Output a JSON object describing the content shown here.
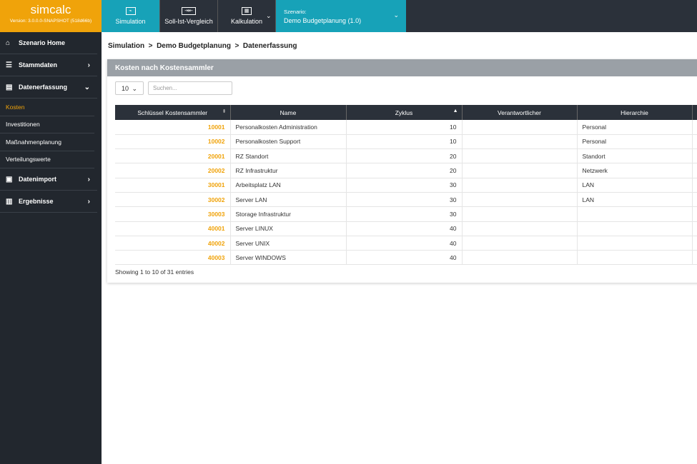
{
  "app": {
    "name": "simcalc",
    "version": "Version: 3.0.0.0-SNAPSHOT (518d66b)",
    "accent": "#f0a30a",
    "teal": "#17a2b8"
  },
  "topnav": {
    "simulation": "Simulation",
    "soll_ist": "Soll-Ist-Vergleich",
    "kalkulation": "Kalkulation",
    "scenario_label": "Szenario:",
    "scenario_value": "Demo Budgetplanung (1.0)"
  },
  "sidebar": {
    "items": [
      {
        "label": "Szenario Home",
        "icon": "home-icon"
      },
      {
        "label": "Stammdaten",
        "icon": "list-icon"
      },
      {
        "label": "Datenerfassung",
        "icon": "document-icon"
      },
      {
        "label": "Datenimport",
        "icon": "import-icon"
      },
      {
        "label": "Ergebnisse",
        "icon": "bar-chart-icon"
      }
    ],
    "sub": [
      "Kosten",
      "Investitionen",
      "Maßnahmenplanung",
      "Verteilungswerte"
    ]
  },
  "breadcrumb": "Simulation  >  Demo Budgetplanung  >  Datenerfassung",
  "card": {
    "title": "Kosten nach Kostensammler",
    "page_size": "10",
    "search_placeholder": "Suchen...",
    "info": "Showing 1 to 10 of 31 entries"
  },
  "table": {
    "headers": [
      "Schlüssel Kostensammler",
      "Name",
      "Zyklus",
      "Verantwortlicher",
      "Hierarchie"
    ],
    "rows": [
      [
        "10001",
        "Personalkosten Administration",
        "10",
        "",
        "Personal"
      ],
      [
        "10002",
        "Personalkosten Support",
        "10",
        "",
        "Personal"
      ],
      [
        "20001",
        "RZ Standort",
        "20",
        "",
        "Standort"
      ],
      [
        "20002",
        "RZ Infrastruktur",
        "20",
        "",
        "Netzwerk"
      ],
      [
        "30001",
        "Arbeitsplatz LAN",
        "30",
        "",
        "LAN"
      ],
      [
        "30002",
        "Server LAN",
        "30",
        "",
        "LAN"
      ],
      [
        "30003",
        "Storage Infrastruktur",
        "30",
        "",
        ""
      ],
      [
        "40001",
        "Server LINUX",
        "40",
        "",
        ""
      ],
      [
        "40002",
        "Server UNIX",
        "40",
        "",
        ""
      ],
      [
        "40003",
        "Server WINDOWS",
        "40",
        "",
        ""
      ]
    ]
  }
}
